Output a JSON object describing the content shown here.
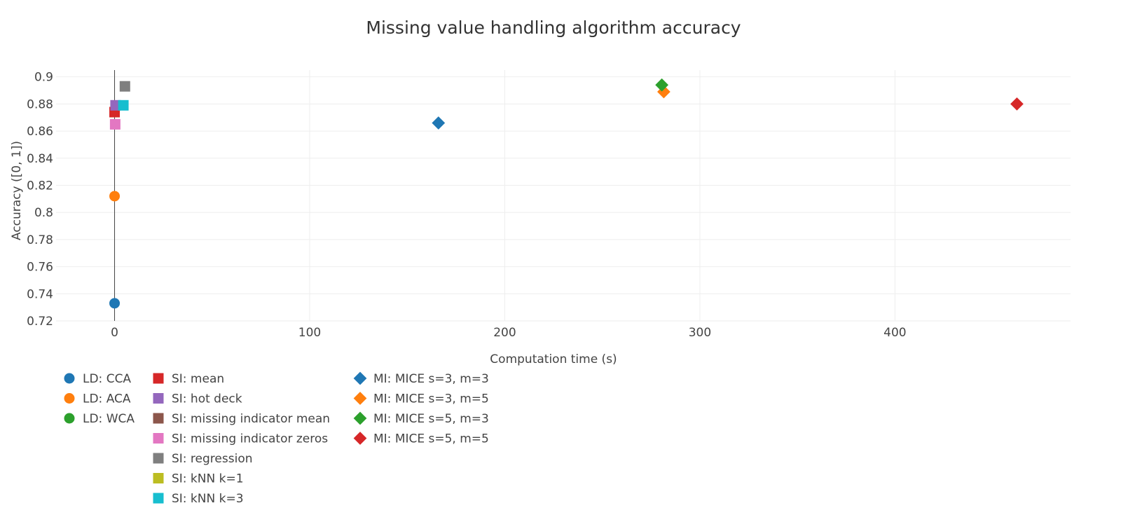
{
  "chart_data": {
    "type": "scatter",
    "title": "Missing value handling algorithm accuracy",
    "xlabel": "Computation time (s)",
    "ylabel": "Accuracy ([0, 1])",
    "xlim": [
      -30,
      490
    ],
    "ylim": [
      0.72,
      0.905
    ],
    "x_ticks": [
      "0",
      "100",
      "200",
      "300",
      "400"
    ],
    "y_ticks": [
      "0.72",
      "0.74",
      "0.76",
      "0.78",
      "0.8",
      "0.82",
      "0.84",
      "0.86",
      "0.88",
      "0.9"
    ],
    "grid": true,
    "legend_position": "bottom",
    "series": [
      {
        "name": "LD: CCA",
        "symbol": "circle",
        "color": "#1f77b4",
        "x": [
          0
        ],
        "y": [
          0.733
        ]
      },
      {
        "name": "LD: ACA",
        "symbol": "circle",
        "color": "#ff7f0e",
        "x": [
          0
        ],
        "y": [
          0.812
        ]
      },
      {
        "name": "LD: WCA",
        "symbol": "circle",
        "color": "#2ca02c",
        "x": [],
        "y": []
      },
      {
        "name": "SI: mean",
        "symbol": "square",
        "color": "#d62728",
        "x": [
          0
        ],
        "y": [
          0.874
        ]
      },
      {
        "name": "SI: hot deck",
        "symbol": "square",
        "color": "#9467bd",
        "x": [
          0.5
        ],
        "y": [
          0.879
        ]
      },
      {
        "name": "SI: missing indicator mean",
        "symbol": "square",
        "color": "#8c564b",
        "x": [],
        "y": []
      },
      {
        "name": "SI: missing indicator zeros",
        "symbol": "square",
        "color": "#e377c2",
        "x": [
          0.3
        ],
        "y": [
          0.865
        ]
      },
      {
        "name": "SI: regression",
        "symbol": "square",
        "color": "#7f7f7f",
        "x": [
          5.3
        ],
        "y": [
          0.893
        ]
      },
      {
        "name": "SI: kNN k=1",
        "symbol": "square",
        "color": "#bcbd22",
        "x": [],
        "y": []
      },
      {
        "name": "SI: kNN k=3",
        "symbol": "square",
        "color": "#17becf",
        "x": [
          4.5
        ],
        "y": [
          0.879
        ]
      },
      {
        "name": "MI: MICE s=3, m=3",
        "symbol": "diamond",
        "color": "#1f77b4",
        "x": [
          166
        ],
        "y": [
          0.866
        ]
      },
      {
        "name": "MI: MICE s=3, m=5",
        "symbol": "diamond",
        "color": "#ff7f0e",
        "x": [
          281.5
        ],
        "y": [
          0.889
        ]
      },
      {
        "name": "MI: MICE s=5, m=3",
        "symbol": "diamond",
        "color": "#2ca02c",
        "x": [
          280.5
        ],
        "y": [
          0.894
        ]
      },
      {
        "name": "MI: MICE s=5, m=5",
        "symbol": "diamond",
        "color": "#d62728",
        "x": [
          462.5
        ],
        "y": [
          0.88
        ]
      }
    ]
  }
}
